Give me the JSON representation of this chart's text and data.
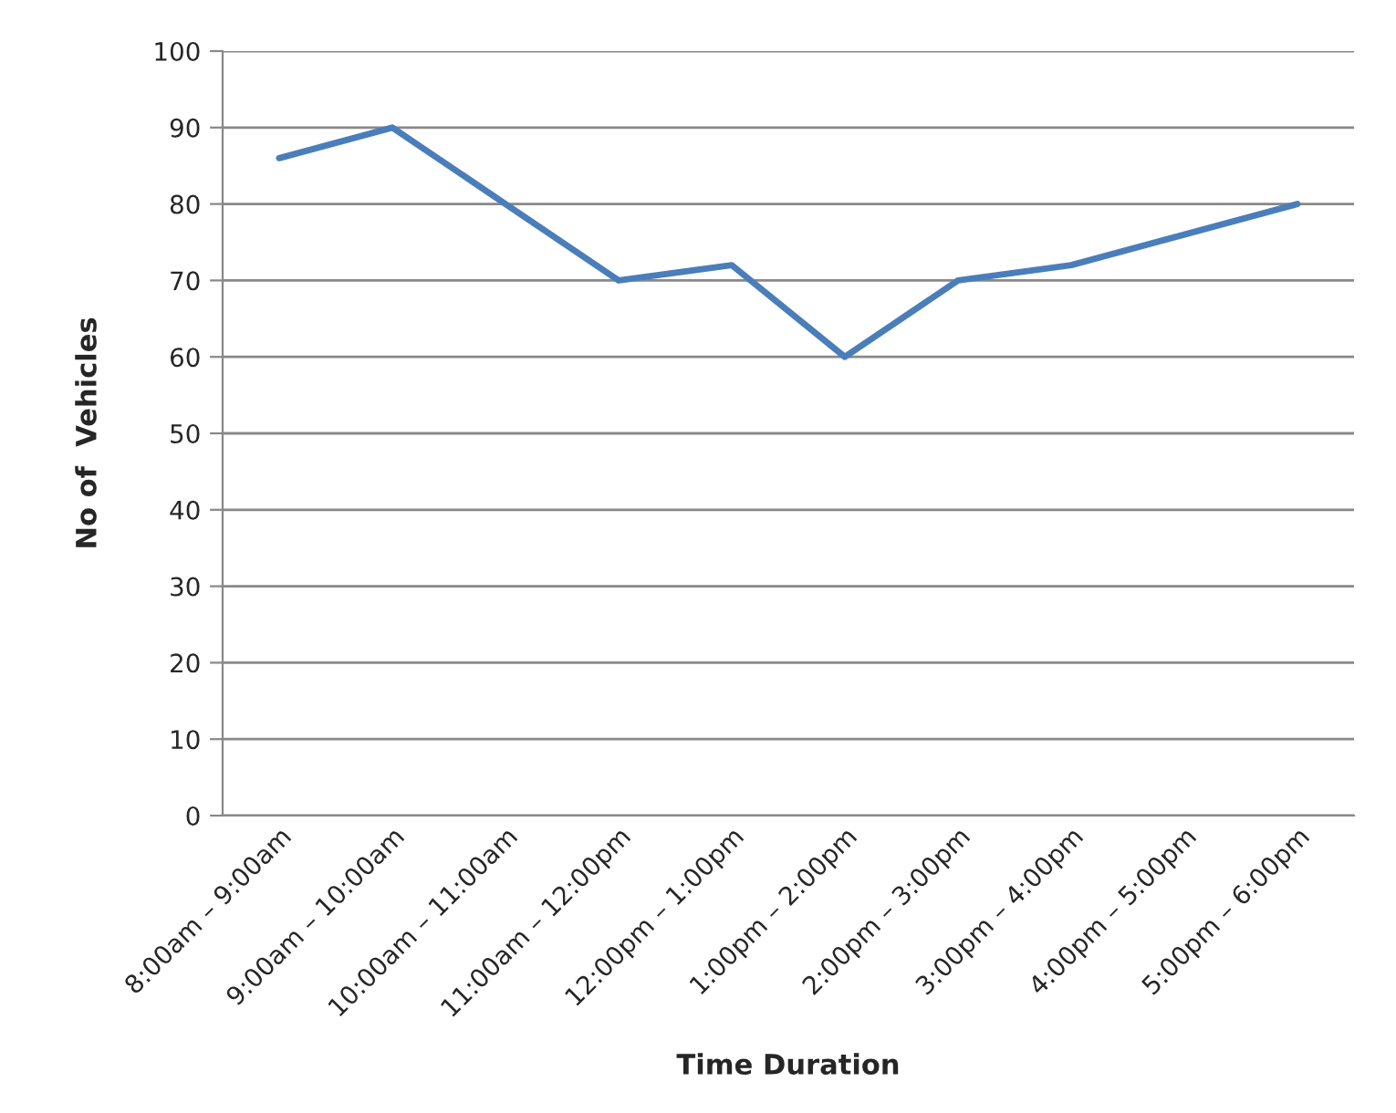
{
  "chart_data": {
    "type": "line",
    "xlabel": "Time Duration",
    "ylabel": "No of  Vehicles",
    "categories": [
      "8:00am – 9:00am",
      "9:00am – 10:00am",
      "10:00am – 11:00am",
      "11:00am – 12:00pm",
      "12:00pm – 1:00pm",
      "1:00pm – 2:00pm",
      "2:00pm – 3:00pm",
      "3:00pm – 4:00pm",
      "4:00pm – 5:00pm",
      "5:00pm – 6:00pm"
    ],
    "series": [
      {
        "color": "#4a7ebb",
        "values": [
          86,
          90,
          80,
          70,
          72,
          60,
          70,
          72,
          76,
          80
        ]
      }
    ],
    "ylim": [
      0,
      100
    ],
    "yticks": [
      0,
      10,
      20,
      30,
      40,
      50,
      60,
      70,
      80,
      90,
      100
    ],
    "grid": "y",
    "marker": "none",
    "line_style": "solid"
  }
}
